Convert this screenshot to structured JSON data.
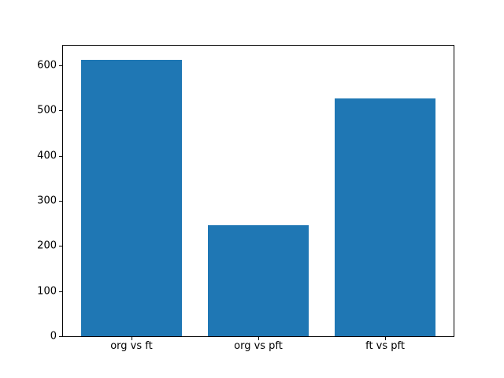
{
  "chart_data": {
    "type": "bar",
    "categories": [
      "org vs ft",
      "org vs pft",
      "ft vs pft"
    ],
    "values": [
      613,
      246,
      526
    ],
    "title": "",
    "xlabel": "",
    "ylabel": "",
    "ylim": [
      0,
      643.65
    ],
    "xlim": [
      -0.54,
      2.54
    ],
    "yticks": [
      0,
      100,
      200,
      300,
      400,
      500,
      600
    ],
    "bar_color": "#1f77b4",
    "bar_width_frac": 0.8,
    "grid": false,
    "legend_position": "none",
    "background_color": "#ffffff",
    "spine_color": "#000000"
  }
}
